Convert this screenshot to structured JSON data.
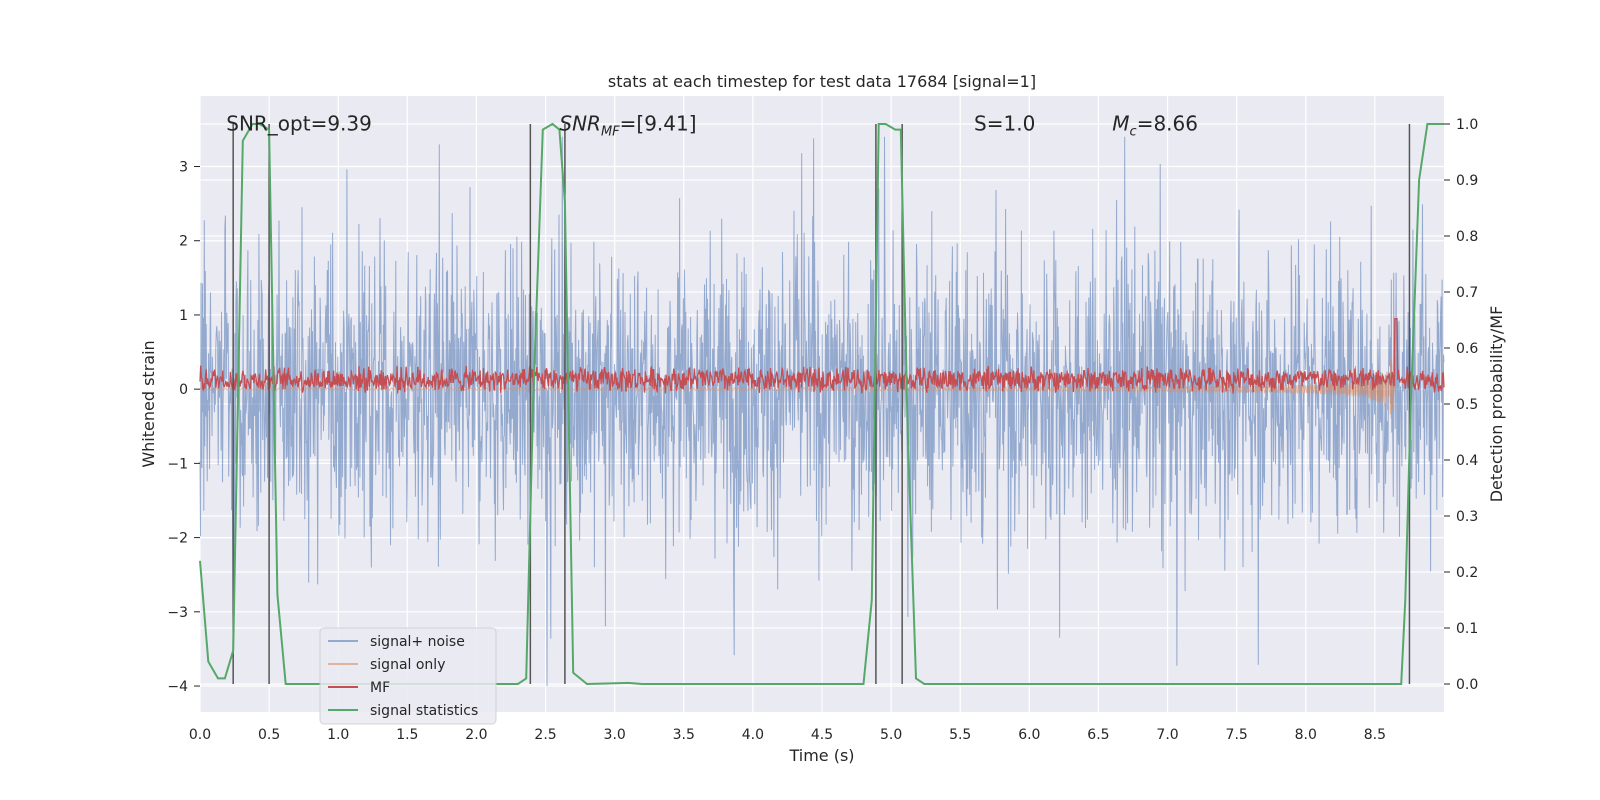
{
  "chart_data": {
    "type": "line",
    "title": "stats at each timestep for test data 17684 [signal=1]",
    "xlabel": "Time (s)",
    "ylabel": "Whitened strain",
    "y2label": "Detection probability/MF",
    "xlim": [
      0.0,
      9.0
    ],
    "ylim": [
      -4.35,
      3.95
    ],
    "y2lim": [
      -0.05,
      1.05
    ],
    "xticks": [
      "0.0",
      "0.5",
      "1.0",
      "1.5",
      "2.0",
      "2.5",
      "3.0",
      "3.5",
      "4.0",
      "4.5",
      "5.0",
      "5.5",
      "6.0",
      "6.5",
      "7.0",
      "7.5",
      "8.0",
      "8.5"
    ],
    "yticks": [
      "3",
      "2",
      "1",
      "0",
      "−1",
      "−2",
      "−3",
      "−4"
    ],
    "y2ticks": [
      "1.0",
      "0.9",
      "0.8",
      "0.7",
      "0.6",
      "0.5",
      "0.4",
      "0.3",
      "0.2",
      "0.1",
      "0.0"
    ],
    "grid": true,
    "legend_position": "lower-left",
    "annotations": [
      {
        "text": "SNR_opt=9.39",
        "x": 0.19,
        "y": 3.58
      },
      {
        "text": "SNR_MF=[9.41]",
        "x": 2.6,
        "y": 3.58
      },
      {
        "text": "S=1.0",
        "x": 5.6,
        "y": 3.58
      },
      {
        "text": "M_c=8.66",
        "x": 6.6,
        "y": 3.58
      }
    ],
    "series": [
      {
        "name": "signal+ noise",
        "color": "#4c72b0",
        "axis": "left",
        "envelope": {
          "upper": 1.5,
          "lower": -1.5,
          "peak_upper": 3.4,
          "peak_lower": -4.0
        }
      },
      {
        "name": "signal only",
        "color": "#dd8452",
        "axis": "left",
        "chirp_end": 8.65,
        "peak_amplitude": 1.0
      },
      {
        "name": "MF",
        "color": "#c44e52",
        "axis": "left",
        "baseline": 0.13,
        "fluctuation": 0.3
      },
      {
        "name": "signal statistics",
        "color": "#55a868",
        "axis": "right",
        "x": [
          0.0,
          0.06,
          0.13,
          0.18,
          0.24,
          0.31,
          0.38,
          0.43,
          0.5,
          0.56,
          0.62,
          0.7,
          1.0,
          2.3,
          2.36,
          2.41,
          2.48,
          2.55,
          2.6,
          2.64,
          2.7,
          2.8,
          3.1,
          3.2,
          4.0,
          4.8,
          4.86,
          4.91,
          4.96,
          5.03,
          5.07,
          5.12,
          5.18,
          5.24,
          6.0,
          8.0,
          8.69,
          8.72,
          8.76,
          8.82,
          8.88,
          8.9,
          8.95,
          9.0
        ],
        "y": [
          0.22,
          0.04,
          0.01,
          0.01,
          0.06,
          0.97,
          1.0,
          1.0,
          0.99,
          0.16,
          0.0,
          0.0,
          0.0,
          0.0,
          0.01,
          0.5,
          0.99,
          1.0,
          0.99,
          0.86,
          0.02,
          0.0,
          0.002,
          0.0,
          0.0,
          0.0,
          0.15,
          1.0,
          1.0,
          0.99,
          0.99,
          0.45,
          0.01,
          0.0,
          0.0,
          0.0,
          0.0,
          0.15,
          0.5,
          0.9,
          1.0,
          1.0,
          1.0,
          1.0
        ]
      }
    ],
    "vertical_lines": [
      0.24,
      0.5,
      2.39,
      2.64,
      4.89,
      5.08,
      8.75
    ]
  }
}
